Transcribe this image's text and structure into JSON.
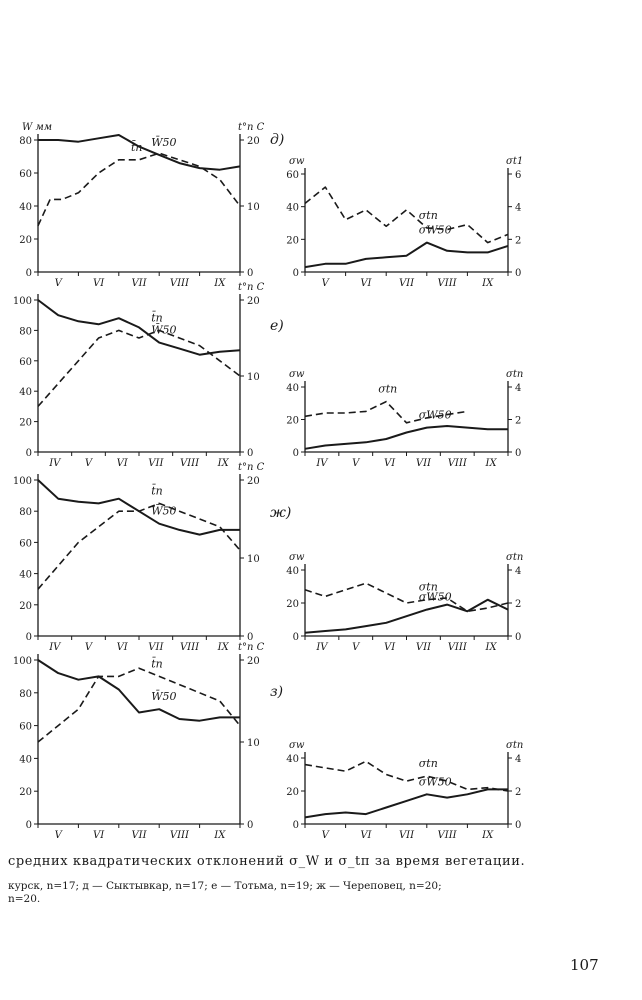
{
  "caption": {
    "main": "средних квадратических отклонений σ_W и σ_tп за время вегетации.",
    "legend_line1": "курск, n=17; д — Сыктывкар, n=17; е — Тотьма, n=19; ж — Череповец, n=20;",
    "legend_line2": "n=20."
  },
  "page_number": "107",
  "chart_data": [
    {
      "type": "line",
      "panel": "д)",
      "side": "left",
      "y_left_label": "W мм",
      "y_right_label": "t°п C",
      "y_left_ticks": [
        "80",
        "60",
        "40",
        "20",
        "0"
      ],
      "ylim_left": [
        0,
        80
      ],
      "y_right_ticks": [
        "20",
        "10",
        "0"
      ],
      "ylim_right": [
        0,
        20
      ],
      "months": [
        "V",
        "VI",
        "VII",
        "VIII",
        "IX"
      ],
      "series": [
        {
          "name": "W̄50",
          "axis": "left",
          "style": "solid",
          "x": [
            0,
            0.5,
            1,
            1.5,
            2,
            2.5,
            3,
            3.5,
            4,
            4.5,
            5
          ],
          "values": [
            80,
            80,
            79,
            81,
            83,
            76,
            71,
            66,
            63,
            62,
            64
          ]
        },
        {
          "name": "t̄п",
          "axis": "right",
          "style": "dashed",
          "x": [
            0,
            0.3,
            0.6,
            1,
            1.5,
            2,
            2.5,
            3,
            3.5,
            4,
            4.5,
            5
          ],
          "values": [
            7,
            11,
            11,
            12,
            15,
            17,
            17,
            18,
            17,
            16,
            14,
            10
          ]
        }
      ]
    },
    {
      "type": "line",
      "panel": "д)",
      "side": "right",
      "y_left_label": "σw",
      "y_right_label": "σt1",
      "y_left_ticks": [
        "60",
        "40",
        "20",
        "0"
      ],
      "ylim_left": [
        0,
        60
      ],
      "y_right_ticks": [
        "6",
        "4",
        "2",
        "0"
      ],
      "ylim_right": [
        0,
        6
      ],
      "months": [
        "V",
        "VI",
        "VII",
        "VIII",
        "IX"
      ],
      "series": [
        {
          "name": "σtп",
          "axis": "right",
          "style": "dashed",
          "x": [
            0,
            0.5,
            1,
            1.5,
            2,
            2.5,
            3,
            3.5,
            4,
            4.5,
            5
          ],
          "values": [
            4.2,
            5.2,
            3.2,
            3.8,
            2.8,
            3.8,
            2.7,
            2.6,
            2.9,
            1.8,
            2.3
          ]
        },
        {
          "name": "σW50",
          "axis": "left",
          "style": "solid",
          "x": [
            0,
            0.5,
            1,
            1.5,
            2,
            2.5,
            3,
            3.5,
            4,
            4.5,
            5
          ],
          "values": [
            3,
            5,
            5,
            8,
            9,
            10,
            18,
            13,
            12,
            12,
            16
          ]
        }
      ]
    },
    {
      "type": "line",
      "panel": "е)",
      "side": "left",
      "y_left_label": "",
      "y_right_label": "t°п C",
      "y_left_ticks": [
        "100",
        "80",
        "60",
        "40",
        "20",
        "0"
      ],
      "ylim_left": [
        0,
        100
      ],
      "y_right_ticks": [
        "20",
        "10",
        "0"
      ],
      "ylim_right": [
        0,
        20
      ],
      "months": [
        "IV",
        "V",
        "VI",
        "VII",
        "VIII",
        "IX"
      ],
      "series": [
        {
          "name": "W̄50",
          "axis": "left",
          "style": "solid",
          "x": [
            0,
            0.5,
            1,
            1.5,
            2,
            2.5,
            3,
            3.5,
            4,
            4.5,
            5
          ],
          "values": [
            100,
            90,
            86,
            84,
            88,
            82,
            72,
            68,
            64,
            66,
            67
          ]
        },
        {
          "name": "t̄п",
          "axis": "right",
          "style": "dashed",
          "x": [
            0,
            0.5,
            1,
            1.5,
            2,
            2.5,
            3,
            3.5,
            4,
            4.5,
            5
          ],
          "values": [
            6,
            9,
            12,
            15,
            16,
            15,
            16,
            15,
            14,
            12,
            10
          ]
        }
      ]
    },
    {
      "type": "line",
      "panel": "е)",
      "side": "right",
      "y_left_label": "σw",
      "y_right_label": "σtп",
      "y_left_ticks": [
        "40",
        "20",
        "0"
      ],
      "ylim_left": [
        0,
        40
      ],
      "y_right_ticks": [
        "4",
        "2",
        "0"
      ],
      "ylim_right": [
        0,
        4
      ],
      "months": [
        "IV",
        "V",
        "VI",
        "VII",
        "VIII",
        "IX"
      ],
      "series": [
        {
          "name": "σtп",
          "axis": "right",
          "style": "dashed",
          "x": [
            0,
            0.5,
            1,
            1.5,
            2,
            2.5,
            3,
            3.5,
            4
          ],
          "values": [
            2.2,
            2.4,
            2.4,
            2.5,
            3.1,
            1.8,
            2.1,
            2.3,
            2.5
          ]
        },
        {
          "name": "σW50",
          "axis": "left",
          "style": "solid",
          "x": [
            0,
            0.5,
            1,
            1.5,
            2,
            2.5,
            3,
            3.5,
            4,
            4.5,
            5
          ],
          "values": [
            2,
            4,
            5,
            6,
            8,
            12,
            15,
            16,
            15,
            14,
            14
          ]
        }
      ]
    },
    {
      "type": "line",
      "panel": "ж)",
      "side": "left",
      "y_left_label": "",
      "y_right_label": "t°п C",
      "y_left_ticks": [
        "100",
        "80",
        "60",
        "40",
        "20",
        "0"
      ],
      "ylim_left": [
        0,
        100
      ],
      "y_right_ticks": [
        "20",
        "10",
        "0"
      ],
      "ylim_right": [
        0,
        20
      ],
      "months": [
        "IV",
        "V",
        "VI",
        "VII",
        "VIII",
        "IX"
      ],
      "series": [
        {
          "name": "W̄50",
          "axis": "left",
          "style": "solid",
          "x": [
            0,
            0.5,
            1,
            1.5,
            2,
            2.5,
            3,
            3.5,
            4,
            4.5,
            5
          ],
          "values": [
            100,
            88,
            86,
            85,
            88,
            80,
            72,
            68,
            65,
            68,
            68
          ]
        },
        {
          "name": "t̄п",
          "axis": "right",
          "style": "dashed",
          "x": [
            0,
            0.5,
            1,
            1.5,
            2,
            2.5,
            3,
            3.5,
            4,
            4.5,
            5
          ],
          "values": [
            6,
            9,
            12,
            14,
            16,
            16,
            17,
            16,
            15,
            14,
            11
          ]
        }
      ]
    },
    {
      "type": "line",
      "panel": "ж)",
      "side": "right",
      "y_left_label": "σw",
      "y_right_label": "σtп",
      "y_left_ticks": [
        "40",
        "20",
        "0"
      ],
      "ylim_left": [
        0,
        40
      ],
      "y_right_ticks": [
        "4",
        "2",
        "0"
      ],
      "ylim_right": [
        0,
        4
      ],
      "months": [
        "IV",
        "V",
        "VI",
        "VII",
        "VIII",
        "IX"
      ],
      "series": [
        {
          "name": "σtп",
          "axis": "right",
          "style": "dashed",
          "x": [
            0,
            0.5,
            1,
            1.5,
            2,
            2.5,
            3,
            3.5,
            4,
            4.5,
            5
          ],
          "values": [
            2.8,
            2.4,
            2.8,
            3.2,
            2.6,
            2.0,
            2.2,
            2.3,
            1.5,
            1.7,
            2.0
          ]
        },
        {
          "name": "σW50",
          "axis": "left",
          "style": "solid",
          "x": [
            0,
            0.5,
            1,
            1.5,
            2,
            2.5,
            3,
            3.5,
            4,
            4.5,
            5
          ],
          "values": [
            2,
            3,
            4,
            6,
            8,
            12,
            16,
            19,
            15,
            22,
            16
          ]
        }
      ]
    },
    {
      "type": "line",
      "panel": "з)",
      "side": "left",
      "y_left_label": "",
      "y_right_label": "t°п C",
      "y_left_ticks": [
        "100",
        "80",
        "60",
        "40",
        "20",
        "0"
      ],
      "ylim_left": [
        0,
        100
      ],
      "y_right_ticks": [
        "20",
        "10",
        "0"
      ],
      "ylim_right": [
        0,
        20
      ],
      "months": [
        "V",
        "VI",
        "VII",
        "VIII",
        "IX"
      ],
      "series": [
        {
          "name": "W̄50",
          "axis": "left",
          "style": "solid",
          "x": [
            0,
            0.5,
            1,
            1.5,
            2,
            2.5,
            3,
            3.5,
            4,
            4.5,
            5
          ],
          "values": [
            100,
            92,
            88,
            90,
            82,
            68,
            70,
            64,
            63,
            65,
            65
          ]
        },
        {
          "name": "t̄п",
          "axis": "right",
          "style": "dashed",
          "x": [
            0,
            0.5,
            1,
            1.5,
            2,
            2.5,
            3,
            3.5,
            4,
            4.5,
            5
          ],
          "values": [
            10,
            12,
            14,
            18,
            18,
            19,
            18,
            17,
            16,
            15,
            12
          ]
        }
      ]
    },
    {
      "type": "line",
      "panel": "з)",
      "side": "right",
      "y_left_label": "σw",
      "y_right_label": "σtп",
      "y_left_ticks": [
        "40",
        "20",
        "0"
      ],
      "ylim_left": [
        0,
        40
      ],
      "y_right_ticks": [
        "4",
        "2",
        "0"
      ],
      "ylim_right": [
        0,
        4
      ],
      "months": [
        "V",
        "VI",
        "VII",
        "VIII",
        "IX"
      ],
      "series": [
        {
          "name": "σtп",
          "axis": "right",
          "style": "dashed",
          "x": [
            0,
            0.5,
            1,
            1.5,
            2,
            2.5,
            3,
            3.5,
            4,
            4.5,
            5
          ],
          "values": [
            3.6,
            3.4,
            3.2,
            3.8,
            3.0,
            2.6,
            2.9,
            2.6,
            2.1,
            2.2,
            2.0
          ]
        },
        {
          "name": "σW50",
          "axis": "left",
          "style": "solid",
          "x": [
            0,
            0.5,
            1,
            1.5,
            2,
            2.5,
            3,
            3.5,
            4,
            4.5,
            5
          ],
          "values": [
            4,
            6,
            7,
            6,
            10,
            14,
            18,
            16,
            18,
            21,
            21
          ]
        }
      ]
    }
  ]
}
